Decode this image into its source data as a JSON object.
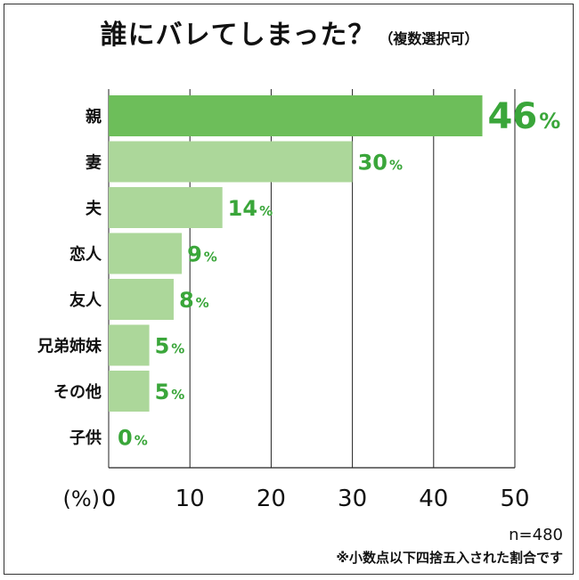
{
  "chart_data": {
    "type": "bar",
    "orientation": "horizontal",
    "title": "誰にバレてしまった？",
    "subtitle": "（複数選択可）",
    "categories": [
      "親",
      "妻",
      "夫",
      "恋人",
      "友人",
      "兄弟姉妹",
      "その他",
      "子供"
    ],
    "values": [
      46,
      30,
      14,
      9,
      8,
      5,
      5,
      0
    ],
    "value_suffix": "%",
    "xlabel": "(%)",
    "xlim": [
      0,
      50
    ],
    "xticks": [
      "0",
      "10",
      "20",
      "30",
      "40",
      "50"
    ],
    "grid": true,
    "colors": {
      "highlight_bar": "#6dbe5a",
      "bar": "#acd79a",
      "value_label": "#3aa63a",
      "grid": "#222222"
    }
  },
  "notes": {
    "sample_size": "n=480",
    "footnote": "※小数点以下四捨五入された割合です"
  }
}
